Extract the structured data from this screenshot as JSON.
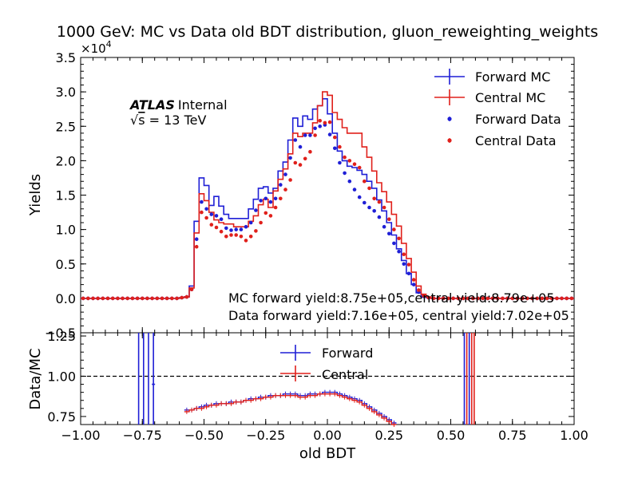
{
  "chart_data": [
    {
      "type": "line",
      "title": "1000 GeV: MC vs Data old BDT distribution, gluon_reweighting_weights",
      "ylabel": "Yields",
      "y_multiplier": "×10",
      "y_multiplier_exp": "4",
      "ylim": [
        -0.5,
        3.5
      ],
      "yticks": [
        "−0.5",
        "0.0",
        "0.5",
        "1.0",
        "1.5",
        "2.0",
        "2.5",
        "3.0",
        "3.5"
      ],
      "xlim": [
        -1.0,
        1.0
      ],
      "atlas_label": "ATLAS",
      "atlas_suffix": "Internal",
      "energy_label": "√s = 13 TeV",
      "energy_sqrt": "√",
      "energy_s": "s",
      "energy_rest": " = 13 TeV",
      "annotations": [
        "MC forward yield:8.75e+05,central yield:8.79e+05",
        "Data forward yield:7.16e+05, central yield:7.02e+05"
      ],
      "legend": [
        "Forward MC",
        "Central MC",
        "Forward Data",
        "Central Data"
      ],
      "legend_position": "top-right",
      "x_centers": [
        -0.99,
        -0.97,
        -0.95,
        -0.93,
        -0.91,
        -0.89,
        -0.87,
        -0.85,
        -0.83,
        -0.81,
        -0.79,
        -0.77,
        -0.75,
        -0.73,
        -0.71,
        -0.69,
        -0.67,
        -0.65,
        -0.63,
        -0.61,
        -0.59,
        -0.57,
        -0.55,
        -0.53,
        -0.51,
        -0.49,
        -0.47,
        -0.45,
        -0.43,
        -0.41,
        -0.39,
        -0.37,
        -0.35,
        -0.33,
        -0.31,
        -0.29,
        -0.27,
        -0.25,
        -0.23,
        -0.21,
        -0.19,
        -0.17,
        -0.15,
        -0.13,
        -0.11,
        -0.09,
        -0.07,
        -0.05,
        -0.03,
        -0.01,
        0.01,
        0.03,
        0.05,
        0.07,
        0.09,
        0.11,
        0.13,
        0.15,
        0.17,
        0.19,
        0.21,
        0.23,
        0.25,
        0.27,
        0.29,
        0.31,
        0.33,
        0.35,
        0.37,
        0.39,
        0.41,
        0.43,
        0.45,
        0.47,
        0.49,
        0.51,
        0.53,
        0.55,
        0.57,
        0.59,
        0.61,
        0.63,
        0.65,
        0.67,
        0.69,
        0.71,
        0.73,
        0.75,
        0.77,
        0.79,
        0.81,
        0.83,
        0.85,
        0.87,
        0.89,
        0.91,
        0.93,
        0.95,
        0.97,
        0.99
      ],
      "series": [
        {
          "name": "Forward MC",
          "color": "#1f1fd6",
          "style": "step",
          "values": [
            0,
            0,
            0,
            0,
            0,
            0,
            0,
            0,
            0,
            0,
            0,
            0,
            0,
            0,
            0,
            0,
            0,
            0,
            0,
            0,
            0.01,
            0.02,
            0.18,
            1.12,
            1.75,
            1.64,
            1.35,
            1.48,
            1.34,
            1.22,
            1.16,
            1.16,
            1.16,
            1.16,
            1.3,
            1.44,
            1.6,
            1.62,
            1.53,
            1.6,
            1.85,
            1.98,
            2.3,
            2.62,
            2.5,
            2.65,
            2.6,
            2.75,
            2.8,
            2.9,
            2.68,
            2.4,
            2.14,
            2.0,
            1.92,
            1.9,
            1.86,
            1.8,
            1.7,
            1.6,
            1.43,
            1.27,
            1.1,
            0.92,
            0.72,
            0.55,
            0.36,
            0.2,
            0.08,
            0.02,
            0.01,
            0,
            0,
            0,
            0,
            0,
            0,
            0,
            0,
            0,
            0,
            0,
            0,
            0,
            0,
            0,
            0,
            0,
            0,
            0,
            0,
            0,
            0,
            0,
            0,
            0,
            0,
            0,
            0,
            0
          ]
        },
        {
          "name": "Central MC",
          "color": "#e0201b",
          "style": "step",
          "values": [
            0,
            0,
            0,
            0,
            0,
            0,
            0,
            0,
            0,
            0,
            0,
            0,
            0,
            0,
            0,
            0,
            0,
            0,
            0,
            0,
            0.01,
            0.02,
            0.15,
            0.95,
            1.52,
            1.42,
            1.25,
            1.14,
            1.1,
            1.08,
            1.08,
            1.04,
            1.04,
            1.04,
            1.12,
            1.2,
            1.36,
            1.44,
            1.32,
            1.56,
            1.73,
            1.88,
            2.1,
            2.4,
            2.35,
            2.4,
            2.4,
            2.55,
            2.8,
            3.0,
            2.95,
            2.7,
            2.6,
            2.48,
            2.4,
            2.4,
            2.4,
            2.2,
            2.05,
            1.85,
            1.68,
            1.55,
            1.4,
            1.22,
            1.05,
            0.8,
            0.58,
            0.38,
            0.18,
            0.06,
            0.02,
            0,
            0,
            0,
            0,
            0,
            0,
            0,
            0,
            0,
            0,
            0,
            0,
            0,
            0,
            0,
            0,
            0,
            0,
            0,
            0,
            0,
            0,
            0,
            0,
            0,
            0,
            0,
            0,
            0
          ]
        },
        {
          "name": "Forward Data",
          "color": "#1f1fd6",
          "style": "marker",
          "values": [
            0,
            0,
            0,
            0,
            0,
            0,
            0,
            0,
            0,
            0,
            0,
            0,
            0,
            0,
            0,
            0,
            0,
            0,
            0,
            0,
            0.01,
            0.02,
            0.13,
            0.86,
            1.4,
            1.3,
            1.22,
            1.2,
            1.15,
            1.02,
            0.99,
            1.0,
            1.0,
            1.04,
            1.1,
            1.28,
            1.42,
            1.45,
            1.4,
            1.45,
            1.65,
            1.8,
            2.04,
            2.3,
            2.2,
            2.37,
            2.37,
            2.47,
            2.5,
            2.52,
            2.38,
            2.18,
            1.97,
            1.82,
            1.7,
            1.58,
            1.47,
            1.39,
            1.32,
            1.27,
            1.18,
            1.04,
            0.94,
            0.8,
            0.68,
            0.5,
            0.36,
            0.2,
            0.09,
            0.03,
            0.01,
            0,
            0,
            0,
            0,
            0,
            0,
            0,
            0,
            0,
            0,
            0,
            0,
            0,
            0,
            0,
            0,
            0,
            0,
            0,
            0,
            0,
            0,
            0,
            0,
            0,
            0,
            0,
            0,
            0
          ]
        },
        {
          "name": "Central Data",
          "color": "#e0201b",
          "style": "marker",
          "values": [
            0,
            0,
            0,
            0,
            0,
            0,
            0,
            0,
            0,
            0,
            0,
            0,
            0,
            0,
            0,
            0,
            0,
            0,
            0,
            0,
            0.01,
            0.02,
            0.13,
            0.75,
            1.25,
            1.17,
            1.07,
            1.03,
            0.97,
            0.9,
            0.92,
            0.92,
            0.9,
            0.84,
            0.9,
            0.98,
            1.1,
            1.24,
            1.2,
            1.32,
            1.45,
            1.58,
            1.72,
            1.97,
            1.94,
            2.03,
            2.13,
            2.37,
            2.58,
            2.55,
            2.56,
            2.34,
            2.2,
            2.05,
            2.0,
            1.95,
            1.9,
            1.7,
            1.6,
            1.45,
            1.4,
            1.32,
            1.15,
            1.0,
            0.87,
            0.64,
            0.49,
            0.27,
            0.12,
            0.04,
            0.01,
            0,
            0,
            0,
            0,
            0,
            0,
            0,
            0,
            0,
            0,
            0,
            0,
            0,
            0,
            0,
            0,
            0,
            0,
            0,
            0,
            0,
            0,
            0,
            0,
            0,
            0,
            0,
            0,
            0
          ]
        }
      ]
    },
    {
      "type": "line",
      "xlabel": "old BDT",
      "ylabel": "Data/MC",
      "ylim": [
        0.7,
        1.27
      ],
      "yticks": [
        "0.75",
        "1.00",
        "1.25"
      ],
      "xlim": [
        -1.0,
        1.0
      ],
      "xticks": [
        "−1.00",
        "−0.75",
        "−0.50",
        "−0.25",
        "0.00",
        "0.25",
        "0.50",
        "0.75",
        "1.00"
      ],
      "reference_line": 1.0,
      "legend": [
        "Forward",
        "Central"
      ],
      "legend_position": "top-center",
      "x_centers_start": -0.57,
      "x_centers_step": 0.02,
      "series": [
        {
          "name": "Forward",
          "color": "#1f1fd6",
          "values": [
            0.79,
            0.79,
            0.8,
            0.81,
            0.82,
            0.82,
            0.83,
            0.83,
            0.83,
            0.84,
            0.84,
            0.84,
            0.85,
            0.86,
            0.86,
            0.87,
            0.87,
            0.88,
            0.88,
            0.88,
            0.89,
            0.89,
            0.89,
            0.88,
            0.88,
            0.89,
            0.89,
            0.89,
            0.9,
            0.9,
            0.9,
            0.89,
            0.88,
            0.87,
            0.86,
            0.85,
            0.83,
            0.81,
            0.79,
            0.77,
            0.75,
            0.73,
            0.71
          ]
        },
        {
          "name": "Central",
          "color": "#e0201b",
          "values": [
            0.78,
            0.79,
            0.8,
            0.8,
            0.81,
            0.82,
            0.82,
            0.83,
            0.83,
            0.83,
            0.84,
            0.84,
            0.85,
            0.85,
            0.86,
            0.86,
            0.87,
            0.87,
            0.88,
            0.88,
            0.88,
            0.88,
            0.88,
            0.87,
            0.87,
            0.88,
            0.88,
            0.89,
            0.89,
            0.89,
            0.89,
            0.88,
            0.87,
            0.86,
            0.85,
            0.84,
            0.82,
            0.8,
            0.78,
            0.76,
            0.74,
            0.72,
            0.7
          ]
        }
      ],
      "spikes_forward": [
        -0.765,
        -0.745,
        -0.725,
        -0.705,
        0.555,
        0.575
      ],
      "spikes_central": [
        0.565,
        0.585,
        0.595
      ]
    }
  ]
}
